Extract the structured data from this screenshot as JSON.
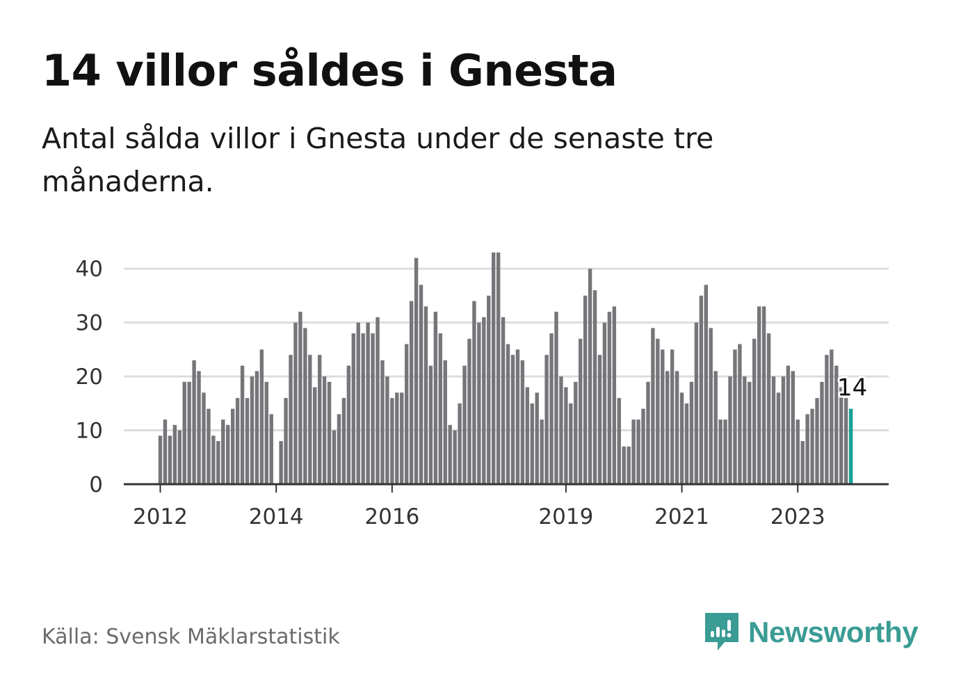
{
  "title": "14 villor såldes i Gnesta",
  "subtitle": "Antal sålda villor i Gnesta under de senaste tre månaderna.",
  "source": "Källa: Svensk Mäklarstatistik",
  "brand": {
    "name": "Newsworthy",
    "icon": "newsworthy-logo-icon",
    "color": "#3a9c94"
  },
  "colors": {
    "bar": "#76767a",
    "highlight": "#17a091",
    "grid": "#dddddd",
    "axis": "#333333"
  },
  "chart_data": {
    "type": "bar",
    "start": "2012-01",
    "series": [
      {
        "name": "Antal sålda villor",
        "values": [
          9,
          12,
          9,
          11,
          10,
          19,
          19,
          23,
          21,
          17,
          14,
          9,
          8,
          12,
          11,
          14,
          16,
          22,
          16,
          20,
          21,
          25,
          19,
          13,
          0,
          8,
          16,
          24,
          30,
          32,
          29,
          24,
          18,
          24,
          20,
          19,
          10,
          13,
          16,
          22,
          28,
          30,
          28,
          30,
          28,
          31,
          23,
          20,
          16,
          17,
          17,
          26,
          34,
          42,
          37,
          33,
          22,
          32,
          28,
          23,
          11,
          10,
          15,
          22,
          27,
          34,
          30,
          31,
          35,
          43,
          43,
          31,
          26,
          24,
          25,
          23,
          18,
          15,
          17,
          12,
          24,
          28,
          32,
          20,
          18,
          15,
          19,
          27,
          35,
          40,
          36,
          24,
          30,
          32,
          33,
          16,
          7,
          7,
          12,
          12,
          14,
          19,
          29,
          27,
          25,
          21,
          25,
          21,
          17,
          15,
          19,
          30,
          35,
          37,
          29,
          21,
          12,
          12,
          20,
          25,
          26,
          20,
          19,
          27,
          33,
          33,
          28,
          20,
          17,
          20,
          22,
          21,
          12,
          8,
          13,
          14,
          16,
          19,
          24,
          25,
          22,
          18,
          16,
          14
        ]
      }
    ],
    "highlight_index": 143,
    "value_label": "14",
    "xticks": [
      {
        "label": "2012",
        "index": 0
      },
      {
        "label": "2014",
        "index": 24
      },
      {
        "label": "2016",
        "index": 48
      },
      {
        "label": "2019",
        "index": 84
      },
      {
        "label": "2021",
        "index": 108
      },
      {
        "label": "2023",
        "index": 132
      }
    ],
    "yticks": [
      0,
      10,
      20,
      30,
      40
    ],
    "ylim": [
      0,
      43
    ],
    "xlabel": "",
    "ylabel": ""
  }
}
